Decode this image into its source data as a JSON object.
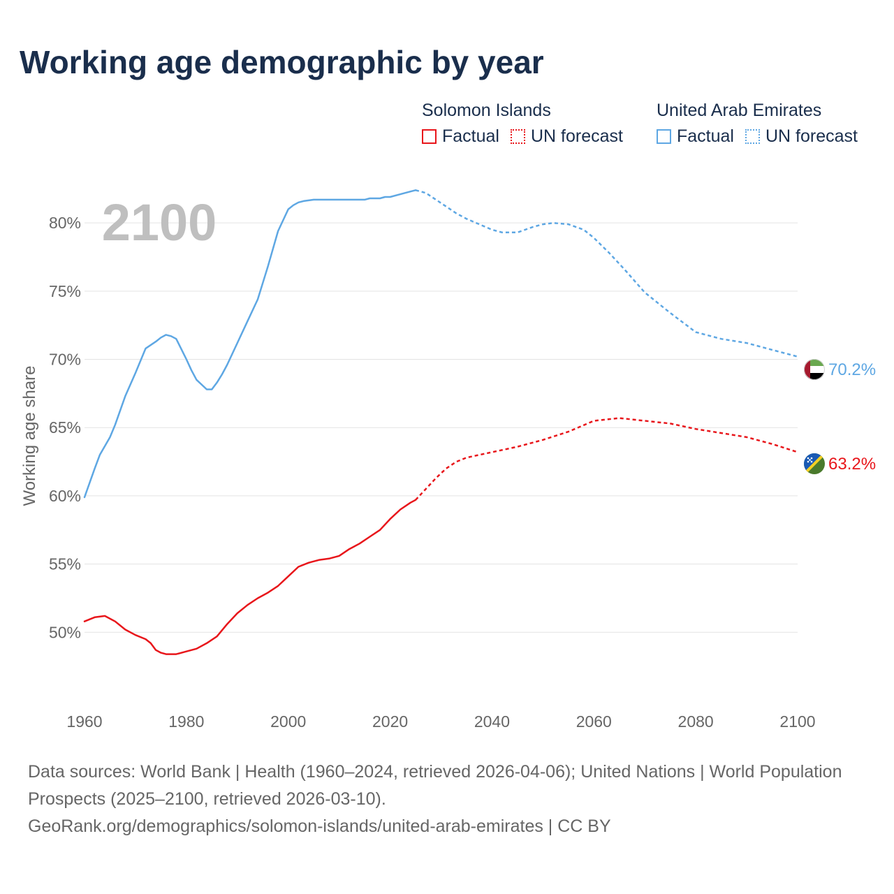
{
  "title": "Working age demographic by year",
  "legend": {
    "groups": [
      {
        "name": "Solomon Islands",
        "color": "#e8161b",
        "factual_label": "Factual",
        "forecast_label": "UN forecast"
      },
      {
        "name": "United Arab Emirates",
        "color": "#5ea7e3",
        "factual_label": "Factual",
        "forecast_label": "UN forecast"
      }
    ]
  },
  "footer": {
    "line1": "Data sources: World Bank | Health (1960–2024, retrieved 2026-04-06); United Nations | World Population Prospects (2025–2100, retrieved 2026-03-10).",
    "line2": "GeoRank.org/demographics/solomon-islands/united-arab-emirates | CC BY"
  },
  "chart_data": {
    "type": "line",
    "title": "Working age demographic by year",
    "year_label": "2100",
    "xlabel": "",
    "ylabel": "Working age share",
    "xlim": [
      1960,
      2100
    ],
    "ylim": [
      45,
      84
    ],
    "x_ticks": [
      1960,
      1980,
      2000,
      2020,
      2040,
      2060,
      2080,
      2100
    ],
    "x_tick_labels": [
      "1960",
      "1980",
      "2000",
      "2020",
      "2040",
      "2060",
      "2080",
      "2100"
    ],
    "y_ticks": [
      50,
      55,
      60,
      65,
      70,
      75,
      80
    ],
    "y_tick_labels": [
      "50%",
      "55%",
      "60%",
      "65%",
      "70%",
      "75%",
      "80%"
    ],
    "grid": true,
    "factual_range": [
      1960,
      2025
    ],
    "forecast_range": [
      2025,
      2100
    ],
    "series": [
      {
        "name": "United Arab Emirates",
        "color": "#5ea7e3",
        "end_label": "70.2%",
        "x": [
          1960,
          1962,
          1963,
          1965,
          1966,
          1968,
          1970,
          1972,
          1974,
          1975,
          1976,
          1977,
          1978,
          1980,
          1981,
          1982,
          1984,
          1985,
          1986,
          1987,
          1988,
          1990,
          1992,
          1994,
          1996,
          1998,
          2000,
          2001,
          2002,
          2003,
          2005,
          2007,
          2008,
          2010,
          2015,
          2016,
          2018,
          2019,
          2020,
          2022,
          2024,
          2025,
          2027,
          2029,
          2031,
          2033,
          2035,
          2040,
          2042,
          2045,
          2048,
          2050,
          2052,
          2055,
          2058,
          2060,
          2063,
          2066,
          2070,
          2075,
          2080,
          2085,
          2090,
          2095,
          2100
        ],
        "values": [
          59.9,
          62.0,
          63.0,
          64.3,
          65.2,
          67.3,
          69.0,
          70.8,
          71.3,
          71.6,
          71.8,
          71.7,
          71.5,
          70.0,
          69.2,
          68.5,
          67.8,
          67.8,
          68.3,
          68.9,
          69.6,
          71.2,
          72.8,
          74.4,
          76.8,
          79.4,
          81.0,
          81.3,
          81.5,
          81.6,
          81.7,
          81.7,
          81.7,
          81.7,
          81.7,
          81.8,
          81.8,
          81.9,
          81.9,
          82.1,
          82.3,
          82.4,
          82.2,
          81.7,
          81.2,
          80.7,
          80.3,
          79.5,
          79.3,
          79.3,
          79.7,
          79.9,
          80.0,
          79.9,
          79.5,
          78.9,
          77.8,
          76.6,
          74.9,
          73.4,
          72.0,
          71.5,
          71.2,
          70.7,
          70.2
        ]
      },
      {
        "name": "Solomon Islands",
        "color": "#e8161b",
        "end_label": "63.2%",
        "x": [
          1960,
          1962,
          1964,
          1966,
          1968,
          1970,
          1972,
          1973,
          1974,
          1975,
          1976,
          1978,
          1980,
          1982,
          1984,
          1986,
          1988,
          1990,
          1992,
          1994,
          1996,
          1998,
          2000,
          2002,
          2004,
          2006,
          2008,
          2010,
          2012,
          2014,
          2016,
          2018,
          2020,
          2022,
          2024,
          2025,
          2027,
          2029,
          2031,
          2033,
          2035,
          2040,
          2045,
          2050,
          2055,
          2060,
          2065,
          2070,
          2075,
          2080,
          2085,
          2090,
          2095,
          2100
        ],
        "values": [
          50.8,
          51.1,
          51.2,
          50.8,
          50.2,
          49.8,
          49.5,
          49.2,
          48.7,
          48.5,
          48.4,
          48.4,
          48.6,
          48.8,
          49.2,
          49.7,
          50.6,
          51.4,
          52.0,
          52.5,
          52.9,
          53.4,
          54.1,
          54.8,
          55.1,
          55.3,
          55.4,
          55.6,
          56.1,
          56.5,
          57.0,
          57.5,
          58.3,
          59.0,
          59.5,
          59.7,
          60.5,
          61.3,
          62.0,
          62.5,
          62.8,
          63.2,
          63.6,
          64.1,
          64.7,
          65.5,
          65.7,
          65.5,
          65.3,
          64.9,
          64.6,
          64.3,
          63.8,
          63.2
        ]
      }
    ]
  }
}
